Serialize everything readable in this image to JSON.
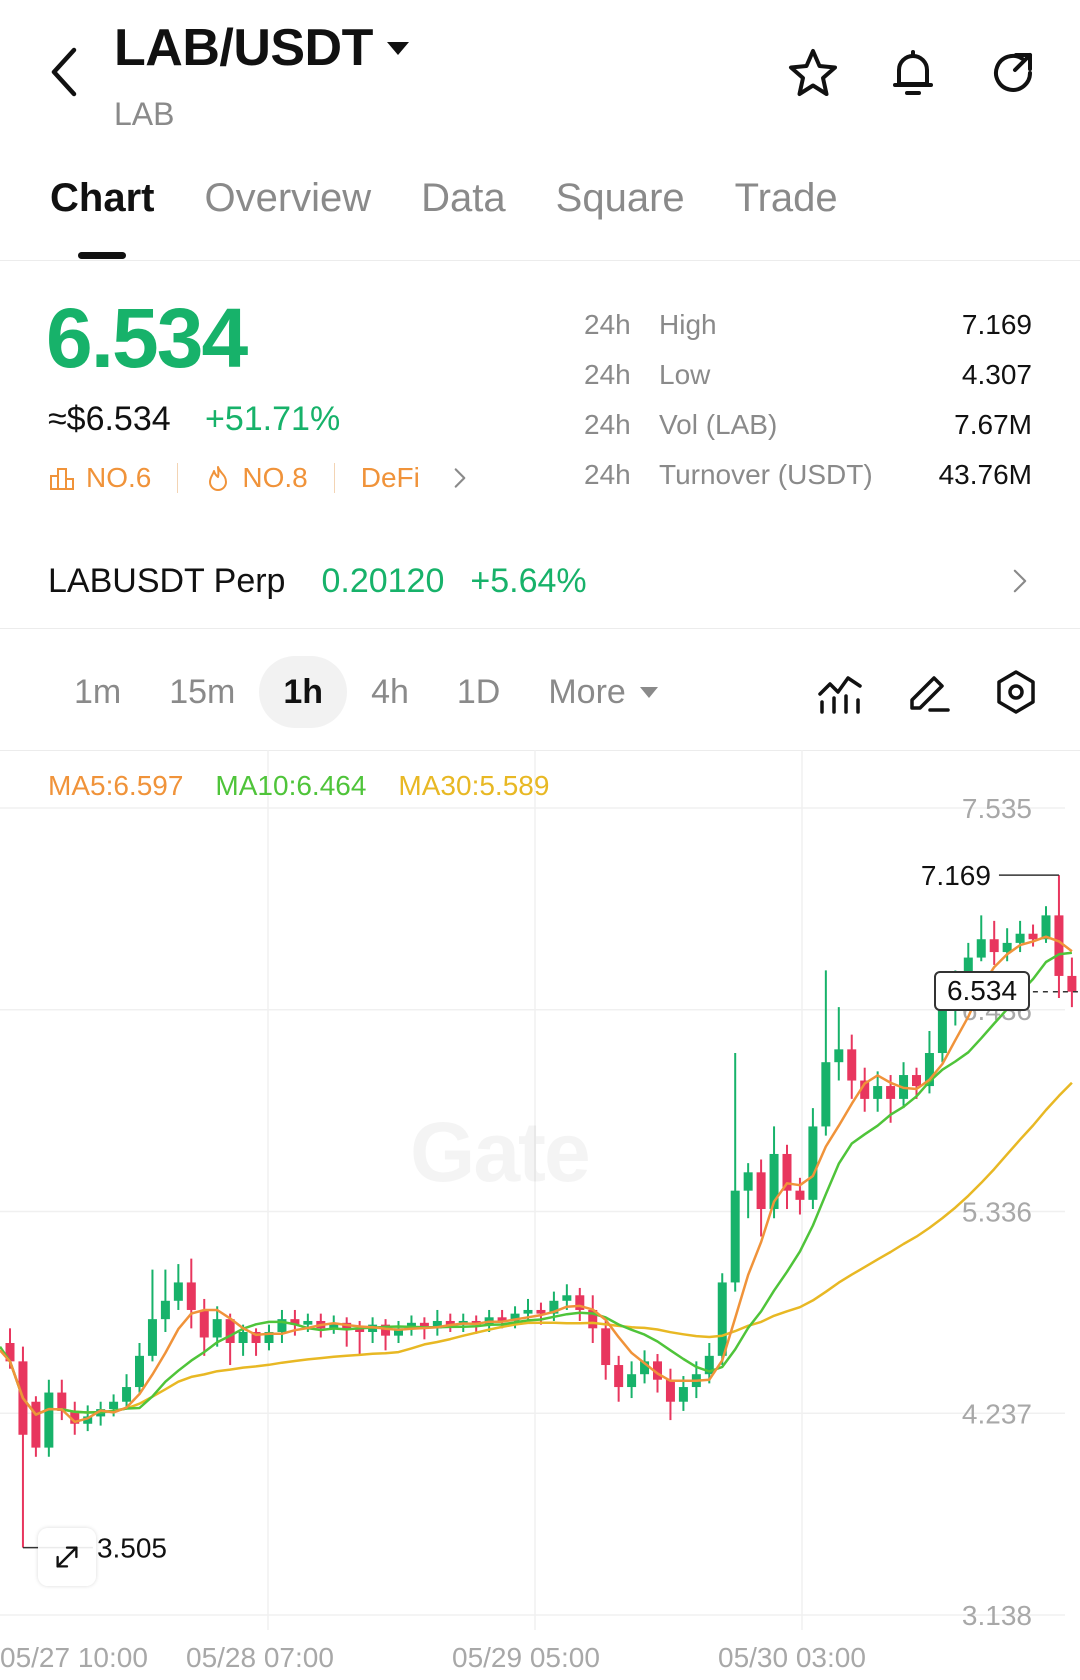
{
  "header": {
    "pair": "LAB/USDT",
    "base": "LAB",
    "icons": [
      "back-chevron-icon",
      "star-icon",
      "bell-icon",
      "share-refresh-icon"
    ]
  },
  "tabs": [
    {
      "label": "Chart",
      "active": true
    },
    {
      "label": "Overview"
    },
    {
      "label": "Data"
    },
    {
      "label": "Square"
    },
    {
      "label": "Trade"
    }
  ],
  "ticker": {
    "price": "6.534",
    "fiat": "≈$6.534",
    "change": "+51.71%",
    "tags": [
      {
        "label": "NO.6",
        "icon": "rank-icon"
      },
      {
        "label": "NO.8",
        "icon": "flame-icon"
      },
      {
        "label": "DeFi"
      }
    ],
    "stats": [
      {
        "period": "24h",
        "key": "High",
        "value": "7.169"
      },
      {
        "period": "24h",
        "key": "Low",
        "value": "4.307"
      },
      {
        "period": "24h",
        "key": "Vol (LAB)",
        "value": "7.67M"
      },
      {
        "period": "24h",
        "key": "Turnover (USDT)",
        "value": "43.76M"
      }
    ]
  },
  "perp": {
    "name": "LABUSDT Perp",
    "price": "0.20120",
    "change": "+5.64%"
  },
  "intervals": {
    "items": [
      "1m",
      "15m",
      "1h",
      "4h",
      "1D"
    ],
    "active": "1h",
    "more": "More"
  },
  "ma": {
    "ma5": "MA5:6.597",
    "ma10": "MA10:6.464",
    "ma30": "MA30:5.589"
  },
  "watermark": "Gate",
  "colors": {
    "up": "#17b26a",
    "down": "#e8365e",
    "ma5": "#f0933a",
    "ma10": "#4fc43a",
    "ma30": "#e8b824"
  },
  "chart_data": {
    "type": "candlestick",
    "y_axis_labels": [
      "7.535",
      "6.436",
      "5.336",
      "4.237",
      "3.138"
    ],
    "ylim": [
      3.138,
      7.535
    ],
    "x_axis_labels": [
      "05/27 10:00",
      "05/28 07:00",
      "05/29 05:00",
      "05/30 03:00"
    ],
    "high_marker": "7.169",
    "low_marker": "3.505",
    "current_price": "6.534",
    "candles": [
      [
        4.62,
        4.52,
        4.7,
        4.48
      ],
      [
        4.52,
        4.12,
        4.6,
        3.505
      ],
      [
        4.3,
        4.05,
        4.33,
        4.0
      ],
      [
        4.05,
        4.35,
        4.42,
        4.0
      ],
      [
        4.35,
        4.25,
        4.42,
        4.2
      ],
      [
        4.25,
        4.18,
        4.3,
        4.12
      ],
      [
        4.18,
        4.22,
        4.28,
        4.14
      ],
      [
        4.22,
        4.26,
        4.3,
        4.17
      ],
      [
        4.26,
        4.3,
        4.34,
        4.22
      ],
      [
        4.3,
        4.38,
        4.45,
        4.27
      ],
      [
        4.38,
        4.55,
        4.62,
        4.35
      ],
      [
        4.55,
        4.75,
        5.02,
        4.52
      ],
      [
        4.75,
        4.85,
        5.02,
        4.68
      ],
      [
        4.85,
        4.95,
        5.05,
        4.8
      ],
      [
        4.95,
        4.8,
        5.08,
        4.7
      ],
      [
        4.8,
        4.65,
        4.86,
        4.55
      ],
      [
        4.65,
        4.75,
        4.82,
        4.6
      ],
      [
        4.75,
        4.62,
        4.78,
        4.5
      ],
      [
        4.62,
        4.68,
        4.72,
        4.55
      ],
      [
        4.68,
        4.62,
        4.7,
        4.55
      ],
      [
        4.62,
        4.68,
        4.72,
        4.58
      ],
      [
        4.68,
        4.75,
        4.8,
        4.62
      ],
      [
        4.75,
        4.72,
        4.8,
        4.66
      ],
      [
        4.72,
        4.74,
        4.78,
        4.68
      ],
      [
        4.74,
        4.7,
        4.78,
        4.65
      ],
      [
        4.7,
        4.73,
        4.77,
        4.67
      ],
      [
        4.73,
        4.7,
        4.76,
        4.6
      ],
      [
        4.7,
        4.68,
        4.74,
        4.55
      ],
      [
        4.68,
        4.72,
        4.76,
        4.62
      ],
      [
        4.72,
        4.66,
        4.75,
        4.58
      ],
      [
        4.66,
        4.7,
        4.74,
        4.62
      ],
      [
        4.7,
        4.73,
        4.77,
        4.66
      ],
      [
        4.73,
        4.7,
        4.76,
        4.64
      ],
      [
        4.7,
        4.74,
        4.8,
        4.66
      ],
      [
        4.74,
        4.72,
        4.78,
        4.68
      ],
      [
        4.72,
        4.74,
        4.78,
        4.68
      ],
      [
        4.74,
        4.72,
        4.77,
        4.67
      ],
      [
        4.72,
        4.76,
        4.8,
        4.68
      ],
      [
        4.76,
        4.74,
        4.8,
        4.7
      ],
      [
        4.74,
        4.78,
        4.82,
        4.7
      ],
      [
        4.78,
        4.8,
        4.86,
        4.74
      ],
      [
        4.8,
        4.78,
        4.84,
        4.72
      ],
      [
        4.78,
        4.85,
        4.9,
        4.74
      ],
      [
        4.85,
        4.88,
        4.94,
        4.8
      ],
      [
        4.88,
        4.8,
        4.92,
        4.74
      ],
      [
        4.8,
        4.7,
        4.88,
        4.62
      ],
      [
        4.7,
        4.5,
        4.74,
        4.42
      ],
      [
        4.5,
        4.38,
        4.55,
        4.3
      ],
      [
        4.38,
        4.45,
        4.52,
        4.32
      ],
      [
        4.45,
        4.52,
        4.58,
        4.4
      ],
      [
        4.52,
        4.42,
        4.56,
        4.35
      ],
      [
        4.42,
        4.3,
        4.48,
        4.2
      ],
      [
        4.3,
        4.38,
        4.44,
        4.25
      ],
      [
        4.38,
        4.45,
        4.52,
        4.32
      ],
      [
        4.45,
        4.55,
        4.62,
        4.4
      ],
      [
        4.55,
        4.95,
        5.0,
        4.5
      ],
      [
        4.95,
        5.45,
        6.2,
        4.9
      ],
      [
        5.45,
        5.55,
        5.6,
        5.3
      ],
      [
        5.55,
        5.35,
        5.62,
        5.2
      ],
      [
        5.35,
        5.65,
        5.8,
        5.3
      ],
      [
        5.65,
        5.45,
        5.7,
        5.35
      ],
      [
        5.45,
        5.4,
        5.52,
        5.32
      ],
      [
        5.4,
        5.8,
        5.9,
        5.35
      ],
      [
        5.8,
        6.15,
        6.65,
        5.75
      ],
      [
        6.15,
        6.22,
        6.45,
        6.05
      ],
      [
        6.22,
        6.05,
        6.3,
        5.95
      ],
      [
        6.05,
        5.95,
        6.12,
        5.88
      ],
      [
        5.95,
        6.02,
        6.1,
        5.88
      ],
      [
        6.02,
        5.95,
        6.08,
        5.82
      ],
      [
        5.95,
        6.08,
        6.15,
        5.9
      ],
      [
        6.08,
        6.02,
        6.12,
        5.95
      ],
      [
        6.02,
        6.2,
        6.32,
        5.98
      ],
      [
        6.2,
        6.45,
        6.55,
        6.15
      ],
      [
        6.45,
        6.6,
        6.65,
        6.35
      ],
      [
        6.6,
        6.72,
        6.8,
        6.55
      ],
      [
        6.72,
        6.82,
        6.95,
        6.7
      ],
      [
        6.82,
        6.75,
        6.92,
        6.68
      ],
      [
        6.75,
        6.8,
        6.88,
        6.7
      ],
      [
        6.8,
        6.85,
        6.92,
        6.75
      ],
      [
        6.85,
        6.82,
        6.9,
        6.78
      ],
      [
        6.82,
        6.95,
        7.0,
        6.8
      ],
      [
        6.95,
        6.62,
        7.169,
        6.5
      ],
      [
        6.62,
        6.534,
        6.72,
        6.45
      ]
    ]
  }
}
